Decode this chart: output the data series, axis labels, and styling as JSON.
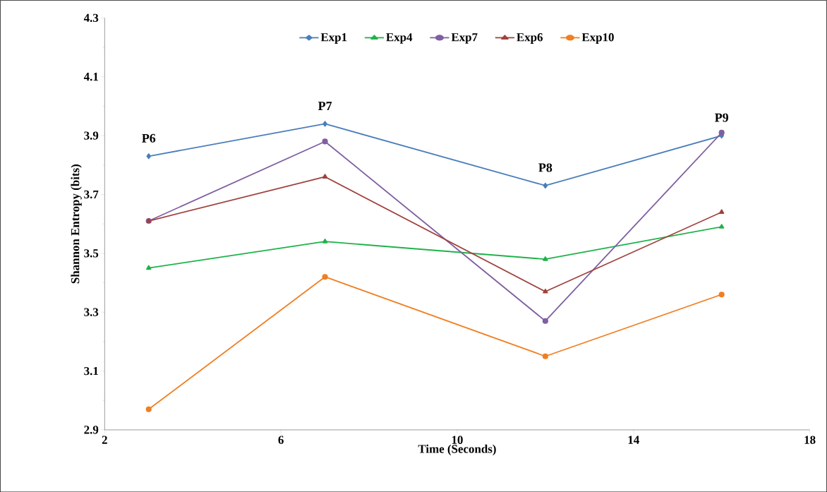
{
  "chart_data": {
    "type": "line",
    "xlabel": "Time (Seconds)",
    "ylabel": "Shannon Entropy (bits)",
    "x": [
      3,
      7,
      12,
      16
    ],
    "series": [
      {
        "name": "Exp1",
        "color": "#4a7ebb",
        "marker": "diamond",
        "values": [
          3.83,
          3.94,
          3.73,
          3.9
        ]
      },
      {
        "name": "Exp4",
        "color": "#1fb24a",
        "marker": "triangle",
        "values": [
          3.45,
          3.54,
          3.48,
          3.59
        ]
      },
      {
        "name": "Exp7",
        "color": "#7f5fa0",
        "marker": "circle",
        "values": [
          3.61,
          3.88,
          3.27,
          3.91
        ]
      },
      {
        "name": "Exp6",
        "color": "#a0413c",
        "marker": "triangle",
        "values": [
          3.61,
          3.76,
          3.37,
          3.64
        ]
      },
      {
        "name": "Exp10",
        "color": "#f07f22",
        "marker": "circle",
        "values": [
          2.97,
          3.42,
          3.15,
          3.36
        ]
      }
    ],
    "annotations": [
      {
        "text": "P6",
        "x": 3,
        "y": 3.83
      },
      {
        "text": "P7",
        "x": 7,
        "y": 3.94
      },
      {
        "text": "P8",
        "x": 12,
        "y": 3.73
      },
      {
        "text": "P9",
        "x": 16,
        "y": 3.9
      }
    ],
    "xlim": [
      2,
      18
    ],
    "xticks": [
      2,
      6,
      10,
      14,
      18
    ],
    "ylim": [
      2.9,
      4.3
    ],
    "yticks": [
      2.9,
      3.1,
      3.3,
      3.5,
      3.7,
      3.9,
      4.1,
      4.3
    ],
    "grid": false,
    "legend": "top",
    "line_style": "solid"
  }
}
